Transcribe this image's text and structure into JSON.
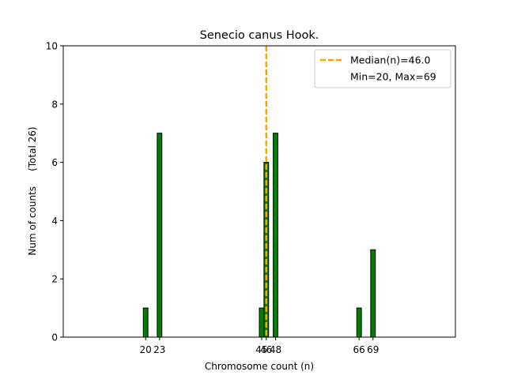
{
  "chart_data": {
    "type": "bar",
    "title": "Senecio canus Hook.",
    "xlabel": "Chromosome count (n)",
    "ylabel": "Num of counts     (Total 26)",
    "xlim": [
      2.25,
      86.75
    ],
    "ylim": [
      0,
      10
    ],
    "yticks": [
      0,
      2,
      4,
      6,
      8,
      10
    ],
    "xticks": [
      20,
      23,
      45,
      46,
      48,
      66,
      69
    ],
    "bar_color": "#008000",
    "bar_edge_color": "#000000",
    "median_color": "#ffa500",
    "bar_width": 1,
    "bars": [
      {
        "x": 20,
        "count": 1
      },
      {
        "x": 23,
        "count": 7
      },
      {
        "x": 45,
        "count": 1
      },
      {
        "x": 46,
        "count": 6
      },
      {
        "x": 48,
        "count": 7
      },
      {
        "x": 66,
        "count": 1
      },
      {
        "x": 69,
        "count": 3
      }
    ],
    "median": 46.0,
    "legend": {
      "position": "upper right",
      "entries": [
        "Median(n)=46.0",
        "Min=20, Max=69"
      ]
    }
  }
}
